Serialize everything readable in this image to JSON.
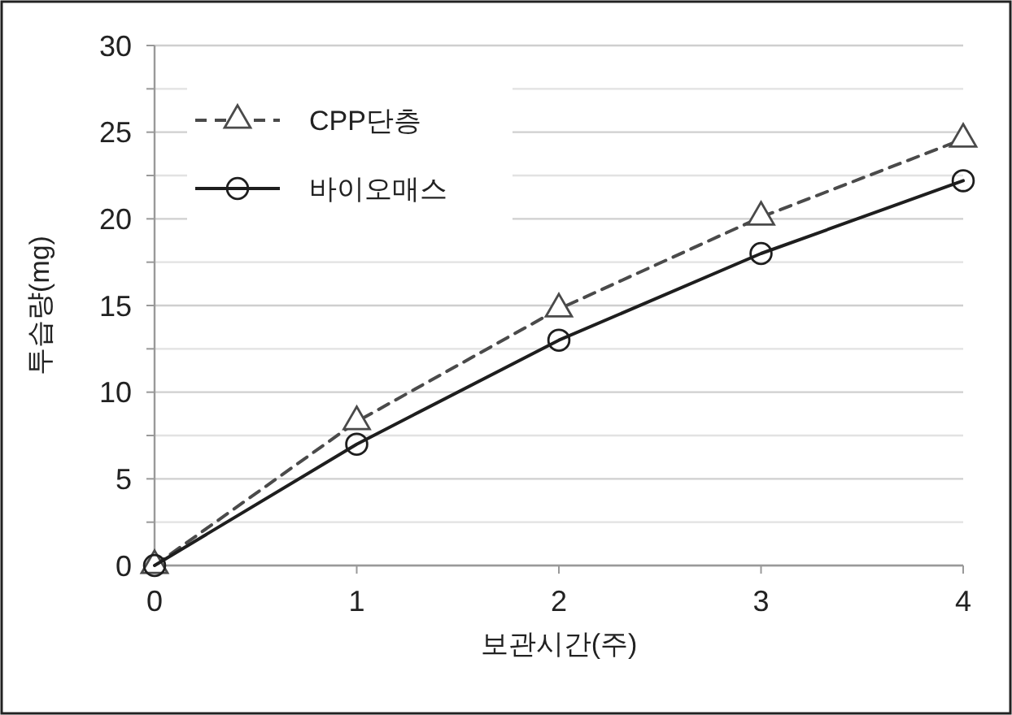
{
  "chart_data": {
    "type": "line",
    "xlabel": "보관시간(주)",
    "ylabel": "투습량(mg)",
    "x": [
      0,
      1,
      2,
      3,
      4
    ],
    "xlim": [
      0,
      4
    ],
    "xticks": [
      0,
      1,
      2,
      3,
      4
    ],
    "ylim": [
      0,
      30
    ],
    "yticks": [
      0,
      {
        "value": 2.5,
        "label": null
      },
      5,
      {
        "value": 7.5,
        "label": null
      },
      10,
      {
        "value": 12.5,
        "label": null
      },
      15,
      {
        "value": 17.5,
        "label": null
      },
      20,
      {
        "value": 22.5,
        "label": null
      },
      25,
      {
        "value": 27.5,
        "label": null
      },
      30
    ],
    "grid": "y",
    "legend": "top left",
    "series": [
      {
        "name": "CPP단층",
        "color": "#4a4a4a",
        "values": [
          0,
          8.3,
          14.8,
          20.1,
          24.6
        ],
        "marker": "triangle",
        "line_style": "dashed"
      },
      {
        "name": "바이오매스",
        "color": "#1e1e1e",
        "values": [
          0,
          7.0,
          13.0,
          18.0,
          22.2
        ],
        "marker": "circle",
        "line_style": "solid"
      }
    ]
  }
}
